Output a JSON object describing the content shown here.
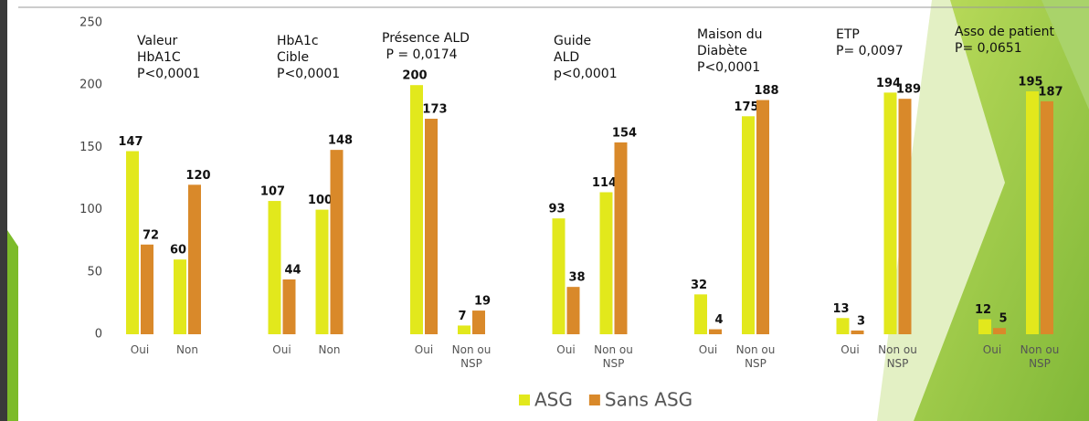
{
  "chart_data": {
    "type": "bar",
    "categories": [
      "Oui",
      "Non",
      "Oui",
      "Non",
      "Oui",
      "Non ou NSP",
      "Oui",
      "Non ou NSP",
      "Oui",
      "Non ou NSP",
      "Oui",
      "Non ou NSP",
      "Oui",
      "Non ou NSP"
    ],
    "series": [
      {
        "name": "ASG",
        "color": "#e2e81c",
        "values": [
          147,
          60,
          107,
          100,
          200,
          7,
          93,
          114,
          32,
          175,
          13,
          194,
          12,
          195
        ]
      },
      {
        "name": "Sans ASG",
        "color": "#d9892a",
        "values": [
          72,
          120,
          44,
          148,
          173,
          19,
          38,
          154,
          4,
          188,
          3,
          189,
          5,
          187
        ]
      }
    ],
    "annotations": [
      {
        "lines": [
          "Valeur",
          "HbA1C",
          "P<0,0001"
        ]
      },
      {
        "lines": [
          "HbA1c",
          "Cible",
          "P<0,0001"
        ]
      },
      {
        "lines": [
          "Présence ALD",
          " P = 0,0174"
        ]
      },
      {
        "lines": [
          "Guide",
          "ALD",
          "p<0,0001"
        ]
      },
      {
        "lines": [
          "Maison du",
          "Diabète",
          "P<0,0001"
        ]
      },
      {
        "lines": [
          "ETP",
          "P= 0,0097"
        ]
      },
      {
        "lines": [
          "Asso de patient",
          "P= 0,0651"
        ]
      }
    ],
    "ylim": [
      0,
      250
    ],
    "yticks": [
      0,
      50,
      100,
      150,
      200,
      250
    ],
    "grid": false,
    "legend": "bottom"
  }
}
